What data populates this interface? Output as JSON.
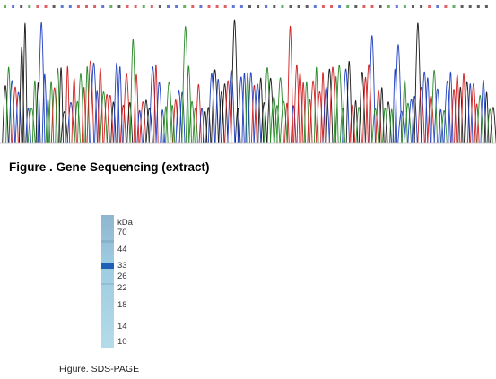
{
  "figures": {
    "sequencing": {
      "caption": "Figure . Gene Sequencing (extract)",
      "trace_colors": [
        "#2a8a2a",
        "#1a1a1a",
        "#d02020",
        "#2040c0"
      ]
    },
    "sds_page": {
      "caption": "Figure. SDS-PAGE",
      "unit_label": "kDa",
      "markers": [
        "70",
        "44",
        "33",
        "26",
        "22",
        "18",
        "14",
        "10"
      ],
      "gel_color": "#a9d2e6",
      "band_color": "#1e5fb8"
    }
  }
}
